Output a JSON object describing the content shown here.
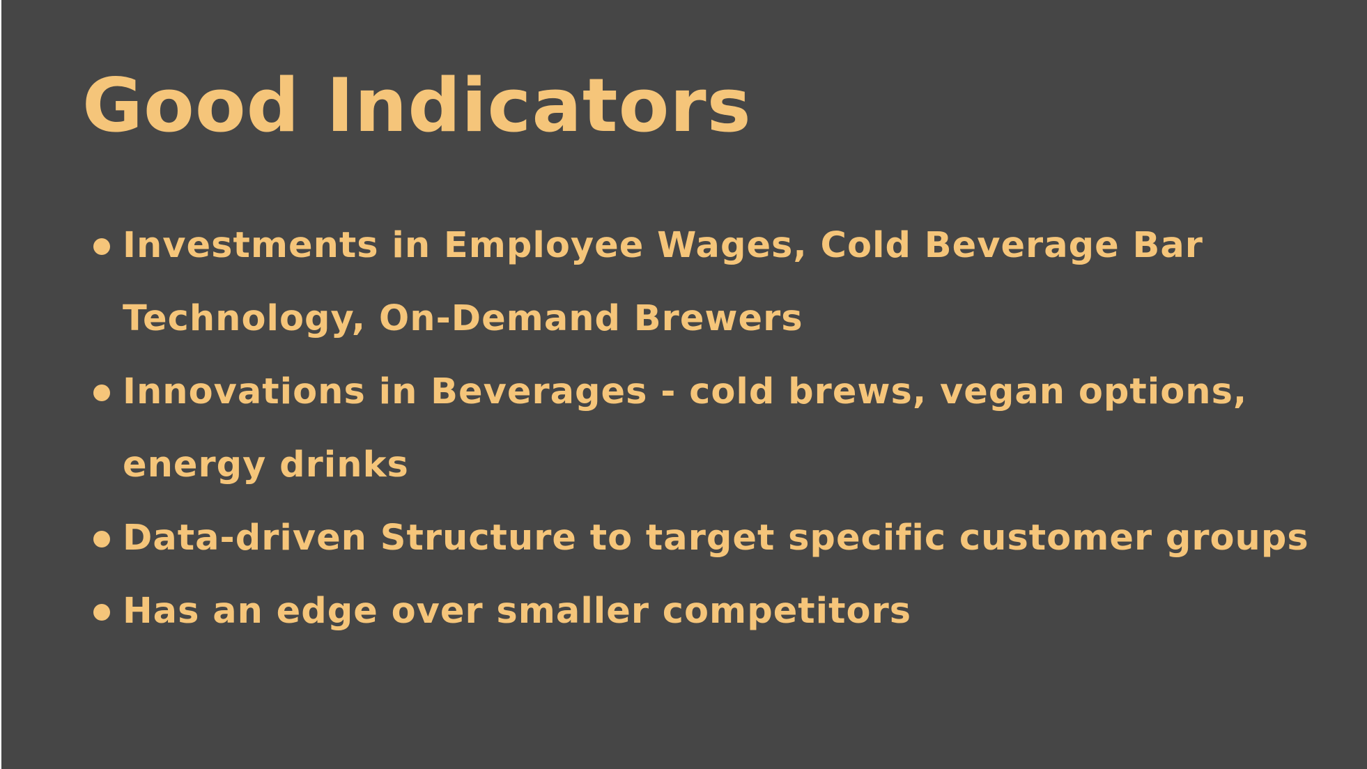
{
  "slide": {
    "title": "Good Indicators",
    "bullets": [
      "Investments in Employee Wages, Cold Beverage Bar Technology, On-Demand Brewers",
      "Innovations in Beverages - cold brews, vegan options, energy drinks",
      "Data-driven Structure to target specific customer groups",
      "Has an edge over smaller competitors"
    ]
  },
  "colors": {
    "background": "#464646",
    "text": "#f5c57a"
  }
}
